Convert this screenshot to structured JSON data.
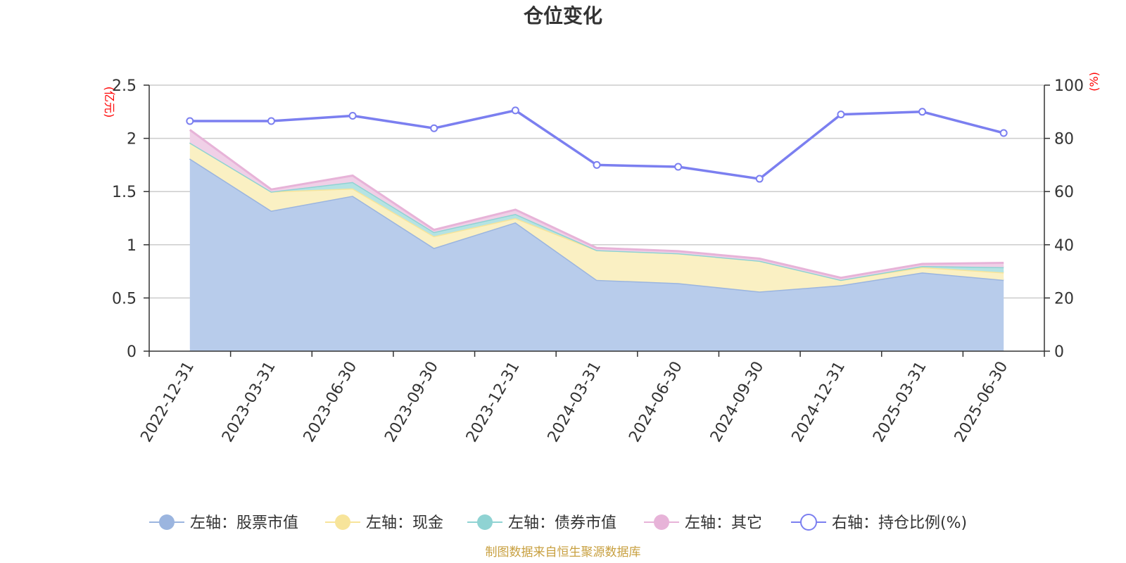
{
  "chart_data": {
    "type": "area",
    "title": "仓位变化",
    "categories": [
      "2022-12-31",
      "2023-03-31",
      "2023-06-30",
      "2023-09-30",
      "2023-12-31",
      "2024-03-31",
      "2024-06-30",
      "2024-09-30",
      "2024-12-31",
      "2025-03-31",
      "2025-06-30"
    ],
    "left_axis": {
      "unit": "(亿元)",
      "ylim": [
        0,
        2.5
      ],
      "ticks": [
        "0",
        "0.5",
        "1",
        "1.5",
        "2",
        "2.5"
      ]
    },
    "right_axis": {
      "unit": "(%)",
      "ylim": [
        0,
        100
      ],
      "ticks": [
        "0",
        "20",
        "40",
        "60",
        "80",
        "100"
      ]
    },
    "series": [
      {
        "name": "左轴：股票市值",
        "axis": "left",
        "stacked": true,
        "color": "#9bb5df",
        "fill": "#b8cceb",
        "values": [
          1.81,
          1.32,
          1.46,
          0.97,
          1.21,
          0.67,
          0.64,
          0.56,
          0.62,
          0.74,
          0.67
        ]
      },
      {
        "name": "左轴：现金",
        "axis": "left",
        "stacked": true,
        "color": "#f7e49a",
        "fill": "#faf0c3",
        "values": [
          0.15,
          0.18,
          0.07,
          0.11,
          0.04,
          0.28,
          0.28,
          0.29,
          0.05,
          0.05,
          0.07
        ]
      },
      {
        "name": "左轴：债券市值",
        "axis": "left",
        "stacked": true,
        "color": "#8fd3d3",
        "fill": "#b5e3e3",
        "values": [
          0.0,
          0.0,
          0.06,
          0.04,
          0.04,
          0.0,
          0.0,
          0.0,
          0.0,
          0.01,
          0.05
        ]
      },
      {
        "name": "左轴：其它",
        "axis": "left",
        "stacked": true,
        "color": "#e7b3d8",
        "fill": "#f0d0e7",
        "values": [
          0.12,
          0.02,
          0.06,
          0.02,
          0.04,
          0.02,
          0.02,
          0.02,
          0.02,
          0.02,
          0.04
        ]
      },
      {
        "name": "右轴：持仓比例(%)",
        "axis": "right",
        "stacked": false,
        "color": "#7b7ff0",
        "values": [
          86.5,
          86.5,
          88.5,
          83.8,
          90.5,
          70.0,
          69.3,
          64.8,
          89.0,
          90.0,
          82.0
        ]
      }
    ],
    "grid": true,
    "legend_position": "bottom"
  },
  "source_note": "制图数据来自恒生聚源数据库"
}
